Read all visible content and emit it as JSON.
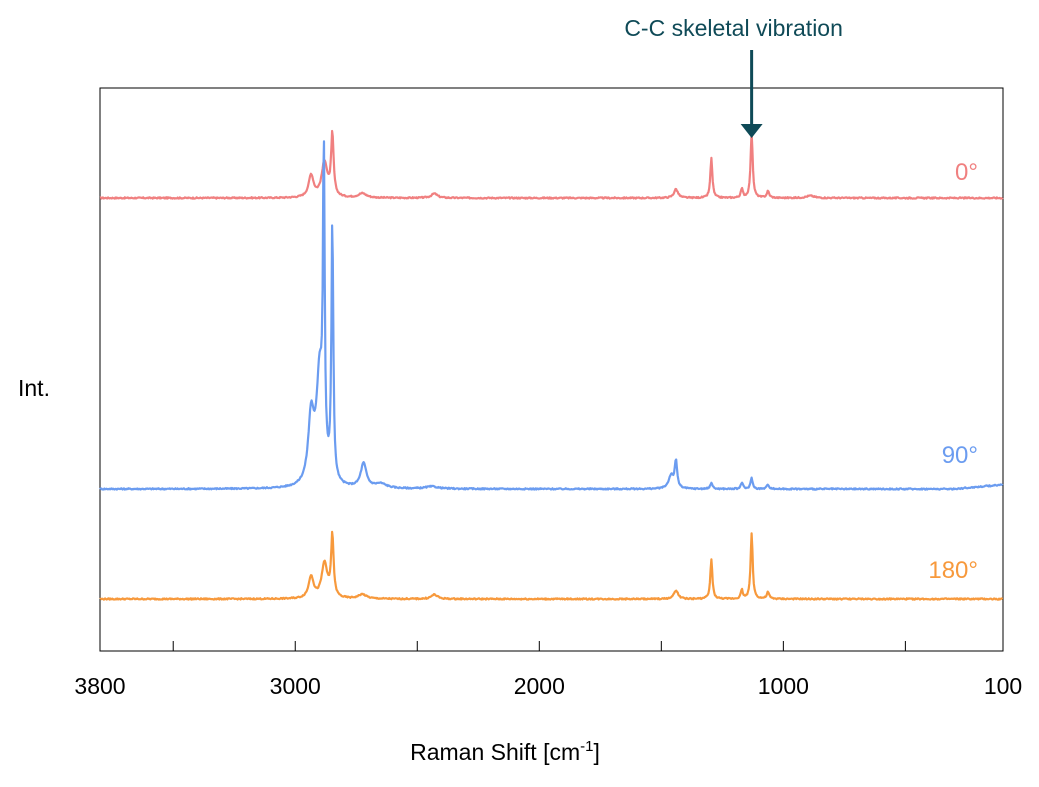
{
  "chart_data": {
    "type": "line",
    "xlabel": "Raman Shift [cm",
    "xlabel_sup": "-1",
    "xlabel_end": "]",
    "ylabel": "Int.",
    "xlim": [
      3800,
      100
    ],
    "x_reversed": true,
    "y_ticks_shown": false,
    "grid": false,
    "x_tick_labels": [
      {
        "value": 3800,
        "label": "3800"
      },
      {
        "value": 3000,
        "label": "3000"
      },
      {
        "value": 2000,
        "label": "2000"
      },
      {
        "value": 1000,
        "label": "1000"
      },
      {
        "value": 100,
        "label": "100"
      }
    ],
    "x_minor_ticks": [
      3500,
      3000,
      2500,
      2000,
      1500,
      1000,
      500
    ],
    "series": [
      {
        "name": "0°",
        "color": "#f08080",
        "baseline": 0,
        "peaks": [
          {
            "x": 2935,
            "h": 0.1,
            "w": 12
          },
          {
            "x": 2880,
            "h": 0.16,
            "w": 14
          },
          {
            "x": 2848,
            "h": 0.28,
            "w": 6
          },
          {
            "x": 2725,
            "h": 0.02,
            "w": 20
          },
          {
            "x": 2430,
            "h": 0.02,
            "w": 15
          },
          {
            "x": 1440,
            "h": 0.04,
            "w": 10
          },
          {
            "x": 1295,
            "h": 0.18,
            "w": 5
          },
          {
            "x": 1170,
            "h": 0.04,
            "w": 5
          },
          {
            "x": 1130,
            "h": 0.3,
            "w": 5
          },
          {
            "x": 1063,
            "h": 0.03,
            "w": 6
          },
          {
            "x": 890,
            "h": 0.01,
            "w": 20
          }
        ]
      },
      {
        "name": "90°",
        "color": "#6b9cf0",
        "baseline": 0,
        "peaks": [
          {
            "x": 2935,
            "h": 0.3,
            "w": 14
          },
          {
            "x": 2900,
            "h": 0.5,
            "w": 16
          },
          {
            "x": 2883,
            "h": 1.4,
            "w": 4
          },
          {
            "x": 2848,
            "h": 1.18,
            "w": 4.5
          },
          {
            "x": 2720,
            "h": 0.11,
            "w": 14
          },
          {
            "x": 2650,
            "h": 0.02,
            "w": 30
          },
          {
            "x": 2440,
            "h": 0.01,
            "w": 30
          },
          {
            "x": 1460,
            "h": 0.06,
            "w": 12
          },
          {
            "x": 1440,
            "h": 0.12,
            "w": 6
          },
          {
            "x": 1295,
            "h": 0.03,
            "w": 5
          },
          {
            "x": 1170,
            "h": 0.03,
            "w": 5
          },
          {
            "x": 1130,
            "h": 0.05,
            "w": 5
          },
          {
            "x": 1063,
            "h": 0.02,
            "w": 6
          }
        ]
      },
      {
        "name": "180°",
        "color": "#f7993c",
        "baseline": 0,
        "peaks": [
          {
            "x": 2935,
            "h": 0.1,
            "w": 12
          },
          {
            "x": 2880,
            "h": 0.16,
            "w": 14
          },
          {
            "x": 2848,
            "h": 0.28,
            "w": 6
          },
          {
            "x": 2725,
            "h": 0.02,
            "w": 20
          },
          {
            "x": 2430,
            "h": 0.02,
            "w": 15
          },
          {
            "x": 1440,
            "h": 0.04,
            "w": 10
          },
          {
            "x": 1295,
            "h": 0.18,
            "w": 5
          },
          {
            "x": 1170,
            "h": 0.04,
            "w": 5
          },
          {
            "x": 1130,
            "h": 0.3,
            "w": 5
          },
          {
            "x": 1063,
            "h": 0.03,
            "w": 6
          }
        ]
      }
    ],
    "annotations": [
      {
        "text": "C-C skeletal vibration",
        "x": 1130,
        "color": "#0f4a57"
      }
    ]
  }
}
